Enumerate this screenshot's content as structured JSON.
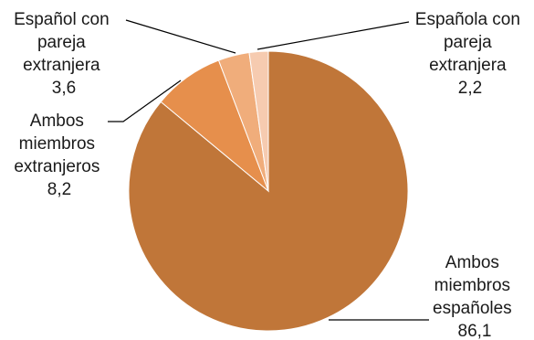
{
  "chart_data": {
    "type": "pie",
    "title": "",
    "slices": [
      {
        "name": "Ambos miembros españoles",
        "value": 86.1,
        "value_label": "86,1",
        "color": "#c07639"
      },
      {
        "name": "Ambos miembros extranjeros",
        "value": 8.2,
        "value_label": "8,2",
        "color": "#e68f4c"
      },
      {
        "name": "Español con pareja extranjera",
        "value": 3.6,
        "value_label": "3,6",
        "color": "#f0ad7b"
      },
      {
        "name": "Española con pareja extranjera",
        "value": 2.2,
        "value_label": "2,2",
        "color": "#f6cbb0"
      }
    ],
    "labels": {
      "espanoles": [
        "Ambos",
        "miembros",
        "españoles",
        "86,1"
      ],
      "extranjeros": [
        "Ambos",
        "miembros",
        "extranjeros",
        "8,2"
      ],
      "espanol_con": [
        "Español con",
        "pareja",
        "extranjera",
        "3,6"
      ],
      "espanola_con": [
        "Española con",
        "pareja",
        "extranjera",
        "2,2"
      ]
    },
    "start_angle": "12 o'clock",
    "direction": "clockwise",
    "legend": "none (data labels with leader lines)"
  }
}
